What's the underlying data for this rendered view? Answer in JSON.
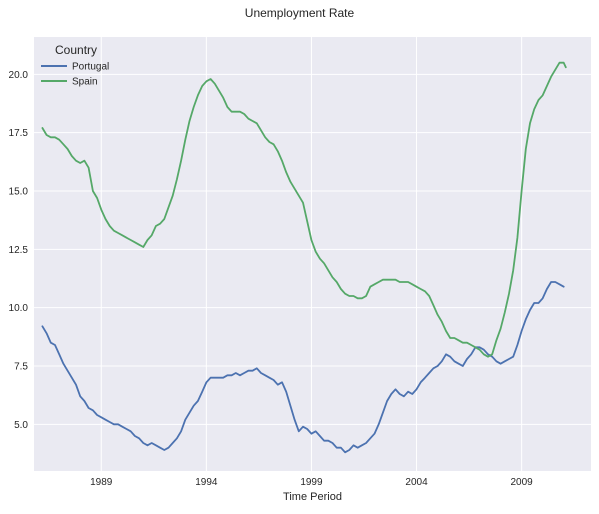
{
  "chart_data": {
    "type": "line",
    "title": "Unemployment Rate",
    "xlabel": "Time Period",
    "ylabel": "",
    "xlim": [
      1985.8,
      2012.3
    ],
    "ylim": [
      3.0,
      21.6
    ],
    "x_ticks": [
      1989,
      1994,
      1999,
      2004,
      2009
    ],
    "y_ticks": [
      5.0,
      7.5,
      10.0,
      12.5,
      15.0,
      17.5,
      20.0
    ],
    "y_tick_labels": [
      "5.0",
      "7.5",
      "10.0",
      "12.5",
      "15.0",
      "17.5",
      "20.0"
    ],
    "grid": true,
    "legend": {
      "title": "Country",
      "placement": "top-left"
    },
    "series": [
      {
        "name": "Portugal",
        "color": "#4c72b0",
        "points": [
          [
            1986.2,
            9.2
          ],
          [
            1986.4,
            8.9
          ],
          [
            1986.6,
            8.5
          ],
          [
            1986.8,
            8.4
          ],
          [
            1987.0,
            8.0
          ],
          [
            1987.2,
            7.6
          ],
          [
            1987.4,
            7.3
          ],
          [
            1987.6,
            7.0
          ],
          [
            1987.8,
            6.7
          ],
          [
            1988.0,
            6.2
          ],
          [
            1988.2,
            6.0
          ],
          [
            1988.4,
            5.7
          ],
          [
            1988.6,
            5.6
          ],
          [
            1988.8,
            5.4
          ],
          [
            1989.0,
            5.3
          ],
          [
            1989.2,
            5.2
          ],
          [
            1989.4,
            5.1
          ],
          [
            1989.6,
            5.0
          ],
          [
            1989.8,
            5.0
          ],
          [
            1990.0,
            4.9
          ],
          [
            1990.2,
            4.8
          ],
          [
            1990.4,
            4.7
          ],
          [
            1990.6,
            4.5
          ],
          [
            1990.8,
            4.4
          ],
          [
            1991.0,
            4.2
          ],
          [
            1991.2,
            4.1
          ],
          [
            1991.4,
            4.2
          ],
          [
            1991.6,
            4.1
          ],
          [
            1991.8,
            4.0
          ],
          [
            1992.0,
            3.9
          ],
          [
            1992.2,
            4.0
          ],
          [
            1992.4,
            4.2
          ],
          [
            1992.6,
            4.4
          ],
          [
            1992.8,
            4.7
          ],
          [
            1993.0,
            5.2
          ],
          [
            1993.2,
            5.5
          ],
          [
            1993.4,
            5.8
          ],
          [
            1993.6,
            6.0
          ],
          [
            1993.8,
            6.4
          ],
          [
            1994.0,
            6.8
          ],
          [
            1994.2,
            7.0
          ],
          [
            1994.4,
            7.0
          ],
          [
            1994.6,
            7.0
          ],
          [
            1994.8,
            7.0
          ],
          [
            1995.0,
            7.1
          ],
          [
            1995.2,
            7.1
          ],
          [
            1995.4,
            7.2
          ],
          [
            1995.6,
            7.1
          ],
          [
            1995.8,
            7.2
          ],
          [
            1996.0,
            7.3
          ],
          [
            1996.2,
            7.3
          ],
          [
            1996.4,
            7.4
          ],
          [
            1996.6,
            7.2
          ],
          [
            1996.8,
            7.1
          ],
          [
            1997.0,
            7.0
          ],
          [
            1997.2,
            6.9
          ],
          [
            1997.4,
            6.7
          ],
          [
            1997.6,
            6.8
          ],
          [
            1997.8,
            6.4
          ],
          [
            1998.0,
            5.8
          ],
          [
            1998.2,
            5.2
          ],
          [
            1998.4,
            4.7
          ],
          [
            1998.6,
            4.9
          ],
          [
            1998.8,
            4.8
          ],
          [
            1999.0,
            4.6
          ],
          [
            1999.2,
            4.7
          ],
          [
            1999.4,
            4.5
          ],
          [
            1999.6,
            4.3
          ],
          [
            1999.8,
            4.3
          ],
          [
            2000.0,
            4.2
          ],
          [
            2000.2,
            4.0
          ],
          [
            2000.4,
            4.0
          ],
          [
            2000.6,
            3.8
          ],
          [
            2000.8,
            3.9
          ],
          [
            2001.0,
            4.1
          ],
          [
            2001.2,
            4.0
          ],
          [
            2001.4,
            4.1
          ],
          [
            2001.6,
            4.2
          ],
          [
            2001.8,
            4.4
          ],
          [
            2002.0,
            4.6
          ],
          [
            2002.2,
            5.0
          ],
          [
            2002.4,
            5.5
          ],
          [
            2002.6,
            6.0
          ],
          [
            2002.8,
            6.3
          ],
          [
            2003.0,
            6.5
          ],
          [
            2003.2,
            6.3
          ],
          [
            2003.4,
            6.2
          ],
          [
            2003.6,
            6.4
          ],
          [
            2003.8,
            6.3
          ],
          [
            2004.0,
            6.5
          ],
          [
            2004.2,
            6.8
          ],
          [
            2004.4,
            7.0
          ],
          [
            2004.6,
            7.2
          ],
          [
            2004.8,
            7.4
          ],
          [
            2005.0,
            7.5
          ],
          [
            2005.2,
            7.7
          ],
          [
            2005.4,
            8.0
          ],
          [
            2005.6,
            7.9
          ],
          [
            2005.8,
            7.7
          ],
          [
            2006.0,
            7.6
          ],
          [
            2006.2,
            7.5
          ],
          [
            2006.4,
            7.8
          ],
          [
            2006.6,
            8.0
          ],
          [
            2006.8,
            8.3
          ],
          [
            2007.0,
            8.3
          ],
          [
            2007.2,
            8.2
          ],
          [
            2007.4,
            8.0
          ],
          [
            2007.6,
            7.9
          ],
          [
            2007.8,
            7.7
          ],
          [
            2008.0,
            7.6
          ],
          [
            2008.2,
            7.7
          ],
          [
            2008.4,
            7.8
          ],
          [
            2008.6,
            7.9
          ],
          [
            2008.8,
            8.4
          ],
          [
            2009.0,
            9.0
          ],
          [
            2009.2,
            9.5
          ],
          [
            2009.4,
            9.9
          ],
          [
            2009.6,
            10.2
          ],
          [
            2009.8,
            10.2
          ],
          [
            2010.0,
            10.4
          ],
          [
            2010.2,
            10.8
          ],
          [
            2010.4,
            11.1
          ],
          [
            2010.6,
            11.1
          ],
          [
            2010.8,
            11.0
          ],
          [
            2011.0,
            10.9
          ]
        ]
      },
      {
        "name": "Spain",
        "color": "#55a868",
        "points": [
          [
            1986.2,
            17.7
          ],
          [
            1986.4,
            17.4
          ],
          [
            1986.6,
            17.3
          ],
          [
            1986.8,
            17.3
          ],
          [
            1987.0,
            17.2
          ],
          [
            1987.2,
            17.0
          ],
          [
            1987.4,
            16.8
          ],
          [
            1987.6,
            16.5
          ],
          [
            1987.8,
            16.3
          ],
          [
            1988.0,
            16.2
          ],
          [
            1988.2,
            16.3
          ],
          [
            1988.4,
            16.0
          ],
          [
            1988.6,
            15.0
          ],
          [
            1988.8,
            14.7
          ],
          [
            1989.0,
            14.2
          ],
          [
            1989.2,
            13.8
          ],
          [
            1989.4,
            13.5
          ],
          [
            1989.6,
            13.3
          ],
          [
            1989.8,
            13.2
          ],
          [
            1990.0,
            13.1
          ],
          [
            1990.2,
            13.0
          ],
          [
            1990.4,
            12.9
          ],
          [
            1990.6,
            12.8
          ],
          [
            1990.8,
            12.7
          ],
          [
            1991.0,
            12.6
          ],
          [
            1991.2,
            12.9
          ],
          [
            1991.4,
            13.1
          ],
          [
            1991.6,
            13.5
          ],
          [
            1991.8,
            13.6
          ],
          [
            1992.0,
            13.8
          ],
          [
            1992.2,
            14.3
          ],
          [
            1992.4,
            14.8
          ],
          [
            1992.6,
            15.5
          ],
          [
            1992.8,
            16.3
          ],
          [
            1993.0,
            17.2
          ],
          [
            1993.2,
            18.0
          ],
          [
            1993.4,
            18.6
          ],
          [
            1993.6,
            19.1
          ],
          [
            1993.8,
            19.5
          ],
          [
            1994.0,
            19.7
          ],
          [
            1994.2,
            19.8
          ],
          [
            1994.4,
            19.6
          ],
          [
            1994.6,
            19.3
          ],
          [
            1994.8,
            19.0
          ],
          [
            1995.0,
            18.6
          ],
          [
            1995.2,
            18.4
          ],
          [
            1995.4,
            18.4
          ],
          [
            1995.6,
            18.4
          ],
          [
            1995.8,
            18.3
          ],
          [
            1996.0,
            18.1
          ],
          [
            1996.2,
            18.0
          ],
          [
            1996.4,
            17.9
          ],
          [
            1996.6,
            17.6
          ],
          [
            1996.8,
            17.3
          ],
          [
            1997.0,
            17.1
          ],
          [
            1997.2,
            17.0
          ],
          [
            1997.4,
            16.7
          ],
          [
            1997.6,
            16.3
          ],
          [
            1997.8,
            15.8
          ],
          [
            1998.0,
            15.4
          ],
          [
            1998.2,
            15.1
          ],
          [
            1998.4,
            14.8
          ],
          [
            1998.6,
            14.5
          ],
          [
            1998.8,
            13.7
          ],
          [
            1999.0,
            12.9
          ],
          [
            1999.2,
            12.4
          ],
          [
            1999.4,
            12.1
          ],
          [
            1999.6,
            11.9
          ],
          [
            1999.8,
            11.6
          ],
          [
            2000.0,
            11.3
          ],
          [
            2000.2,
            11.1
          ],
          [
            2000.4,
            10.8
          ],
          [
            2000.6,
            10.6
          ],
          [
            2000.8,
            10.5
          ],
          [
            2001.0,
            10.5
          ],
          [
            2001.2,
            10.4
          ],
          [
            2001.4,
            10.4
          ],
          [
            2001.6,
            10.5
          ],
          [
            2001.8,
            10.9
          ],
          [
            2002.0,
            11.0
          ],
          [
            2002.2,
            11.1
          ],
          [
            2002.4,
            11.2
          ],
          [
            2002.6,
            11.2
          ],
          [
            2002.8,
            11.2
          ],
          [
            2003.0,
            11.2
          ],
          [
            2003.2,
            11.1
          ],
          [
            2003.4,
            11.1
          ],
          [
            2003.6,
            11.1
          ],
          [
            2003.8,
            11.0
          ],
          [
            2004.0,
            10.9
          ],
          [
            2004.2,
            10.8
          ],
          [
            2004.4,
            10.7
          ],
          [
            2004.6,
            10.5
          ],
          [
            2004.8,
            10.1
          ],
          [
            2005.0,
            9.7
          ],
          [
            2005.2,
            9.4
          ],
          [
            2005.4,
            9.0
          ],
          [
            2005.6,
            8.7
          ],
          [
            2005.8,
            8.7
          ],
          [
            2006.0,
            8.6
          ],
          [
            2006.2,
            8.5
          ],
          [
            2006.4,
            8.5
          ],
          [
            2006.6,
            8.4
          ],
          [
            2006.8,
            8.3
          ],
          [
            2007.0,
            8.2
          ],
          [
            2007.2,
            8.0
          ],
          [
            2007.4,
            7.9
          ],
          [
            2007.6,
            8.0
          ],
          [
            2007.8,
            8.6
          ],
          [
            2008.0,
            9.1
          ],
          [
            2008.2,
            9.8
          ],
          [
            2008.4,
            10.6
          ],
          [
            2008.6,
            11.6
          ],
          [
            2008.8,
            13.0
          ],
          [
            2009.0,
            15.0
          ],
          [
            2009.2,
            16.8
          ],
          [
            2009.4,
            17.9
          ],
          [
            2009.6,
            18.5
          ],
          [
            2009.8,
            18.9
          ],
          [
            2010.0,
            19.1
          ],
          [
            2010.2,
            19.5
          ],
          [
            2010.4,
            19.9
          ],
          [
            2010.6,
            20.2
          ],
          [
            2010.8,
            20.5
          ],
          [
            2011.0,
            20.5
          ],
          [
            2011.1,
            20.3
          ]
        ]
      }
    ]
  }
}
